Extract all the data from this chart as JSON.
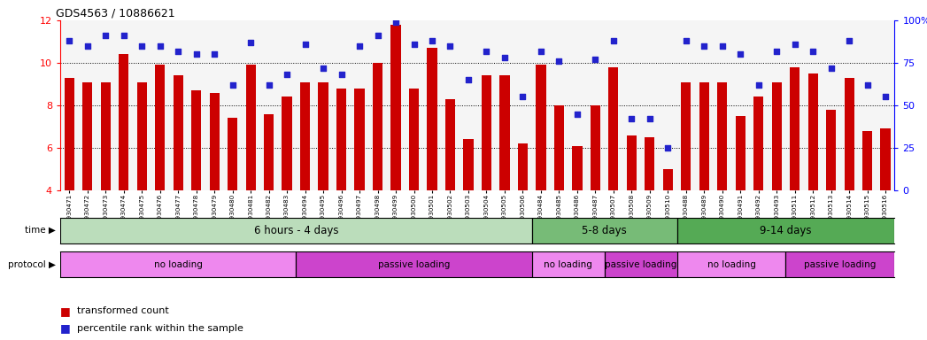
{
  "title": "GDS4563 / 10886621",
  "samples": [
    "GSM930471",
    "GSM930472",
    "GSM930473",
    "GSM930474",
    "GSM930475",
    "GSM930476",
    "GSM930477",
    "GSM930478",
    "GSM930479",
    "GSM930480",
    "GSM930481",
    "GSM930482",
    "GSM930483",
    "GSM930494",
    "GSM930495",
    "GSM930496",
    "GSM930497",
    "GSM930498",
    "GSM930499",
    "GSM930500",
    "GSM930501",
    "GSM930502",
    "GSM930503",
    "GSM930504",
    "GSM930505",
    "GSM930506",
    "GSM930484",
    "GSM930485",
    "GSM930486",
    "GSM930487",
    "GSM930507",
    "GSM930508",
    "GSM930509",
    "GSM930510",
    "GSM930488",
    "GSM930489",
    "GSM930490",
    "GSM930491",
    "GSM930492",
    "GSM930493",
    "GSM930511",
    "GSM930512",
    "GSM930513",
    "GSM930514",
    "GSM930515",
    "GSM930516"
  ],
  "bar_values": [
    9.3,
    9.1,
    9.1,
    10.4,
    9.1,
    9.9,
    9.4,
    8.7,
    8.6,
    7.4,
    9.9,
    7.6,
    8.4,
    9.1,
    9.1,
    8.8,
    8.8,
    10.0,
    11.8,
    8.8,
    10.7,
    8.3,
    6.4,
    9.4,
    9.4,
    6.2,
    9.9,
    8.0,
    6.1,
    8.0,
    9.8,
    6.6,
    6.5,
    5.0,
    9.1,
    9.1,
    9.1,
    7.5,
    8.4,
    9.1,
    9.8,
    9.5,
    7.8,
    9.3,
    6.8,
    6.9
  ],
  "percentile_values": [
    88,
    85,
    91,
    91,
    85,
    85,
    82,
    80,
    80,
    62,
    87,
    62,
    68,
    86,
    72,
    68,
    85,
    91,
    99,
    86,
    88,
    85,
    65,
    82,
    78,
    55,
    82,
    76,
    45,
    77,
    88,
    42,
    42,
    25,
    88,
    85,
    85,
    80,
    62,
    82,
    86,
    82,
    72,
    88,
    62,
    55
  ],
  "ylim_left": [
    4,
    12
  ],
  "ylim_right": [
    0,
    100
  ],
  "yticks_left": [
    4,
    6,
    8,
    10,
    12
  ],
  "yticks_right": [
    0,
    25,
    50,
    75,
    100
  ],
  "bar_color": "#cc0000",
  "scatter_color": "#2222cc",
  "time_bands": [
    {
      "label": "6 hours - 4 days",
      "start": 0,
      "end": 26,
      "color": "#bbddbb"
    },
    {
      "label": "5-8 days",
      "start": 26,
      "end": 34,
      "color": "#77bb77"
    },
    {
      "label": "9-14 days",
      "start": 34,
      "end": 46,
      "color": "#55aa55"
    }
  ],
  "protocol_bands": [
    {
      "label": "no loading",
      "start": 0,
      "end": 13,
      "color": "#ee88ee"
    },
    {
      "label": "passive loading",
      "start": 13,
      "end": 26,
      "color": "#cc44cc"
    },
    {
      "label": "no loading",
      "start": 26,
      "end": 30,
      "color": "#ee88ee"
    },
    {
      "label": "passive loading",
      "start": 30,
      "end": 34,
      "color": "#cc44cc"
    },
    {
      "label": "no loading",
      "start": 34,
      "end": 40,
      "color": "#ee88ee"
    },
    {
      "label": "passive loading",
      "start": 40,
      "end": 46,
      "color": "#cc44cc"
    }
  ],
  "legend_bar_label": "transformed count",
  "legend_scatter_label": "percentile rank within the sample",
  "hline_values": [
    6,
    8,
    10
  ],
  "main_bg": "#f5f5f5"
}
